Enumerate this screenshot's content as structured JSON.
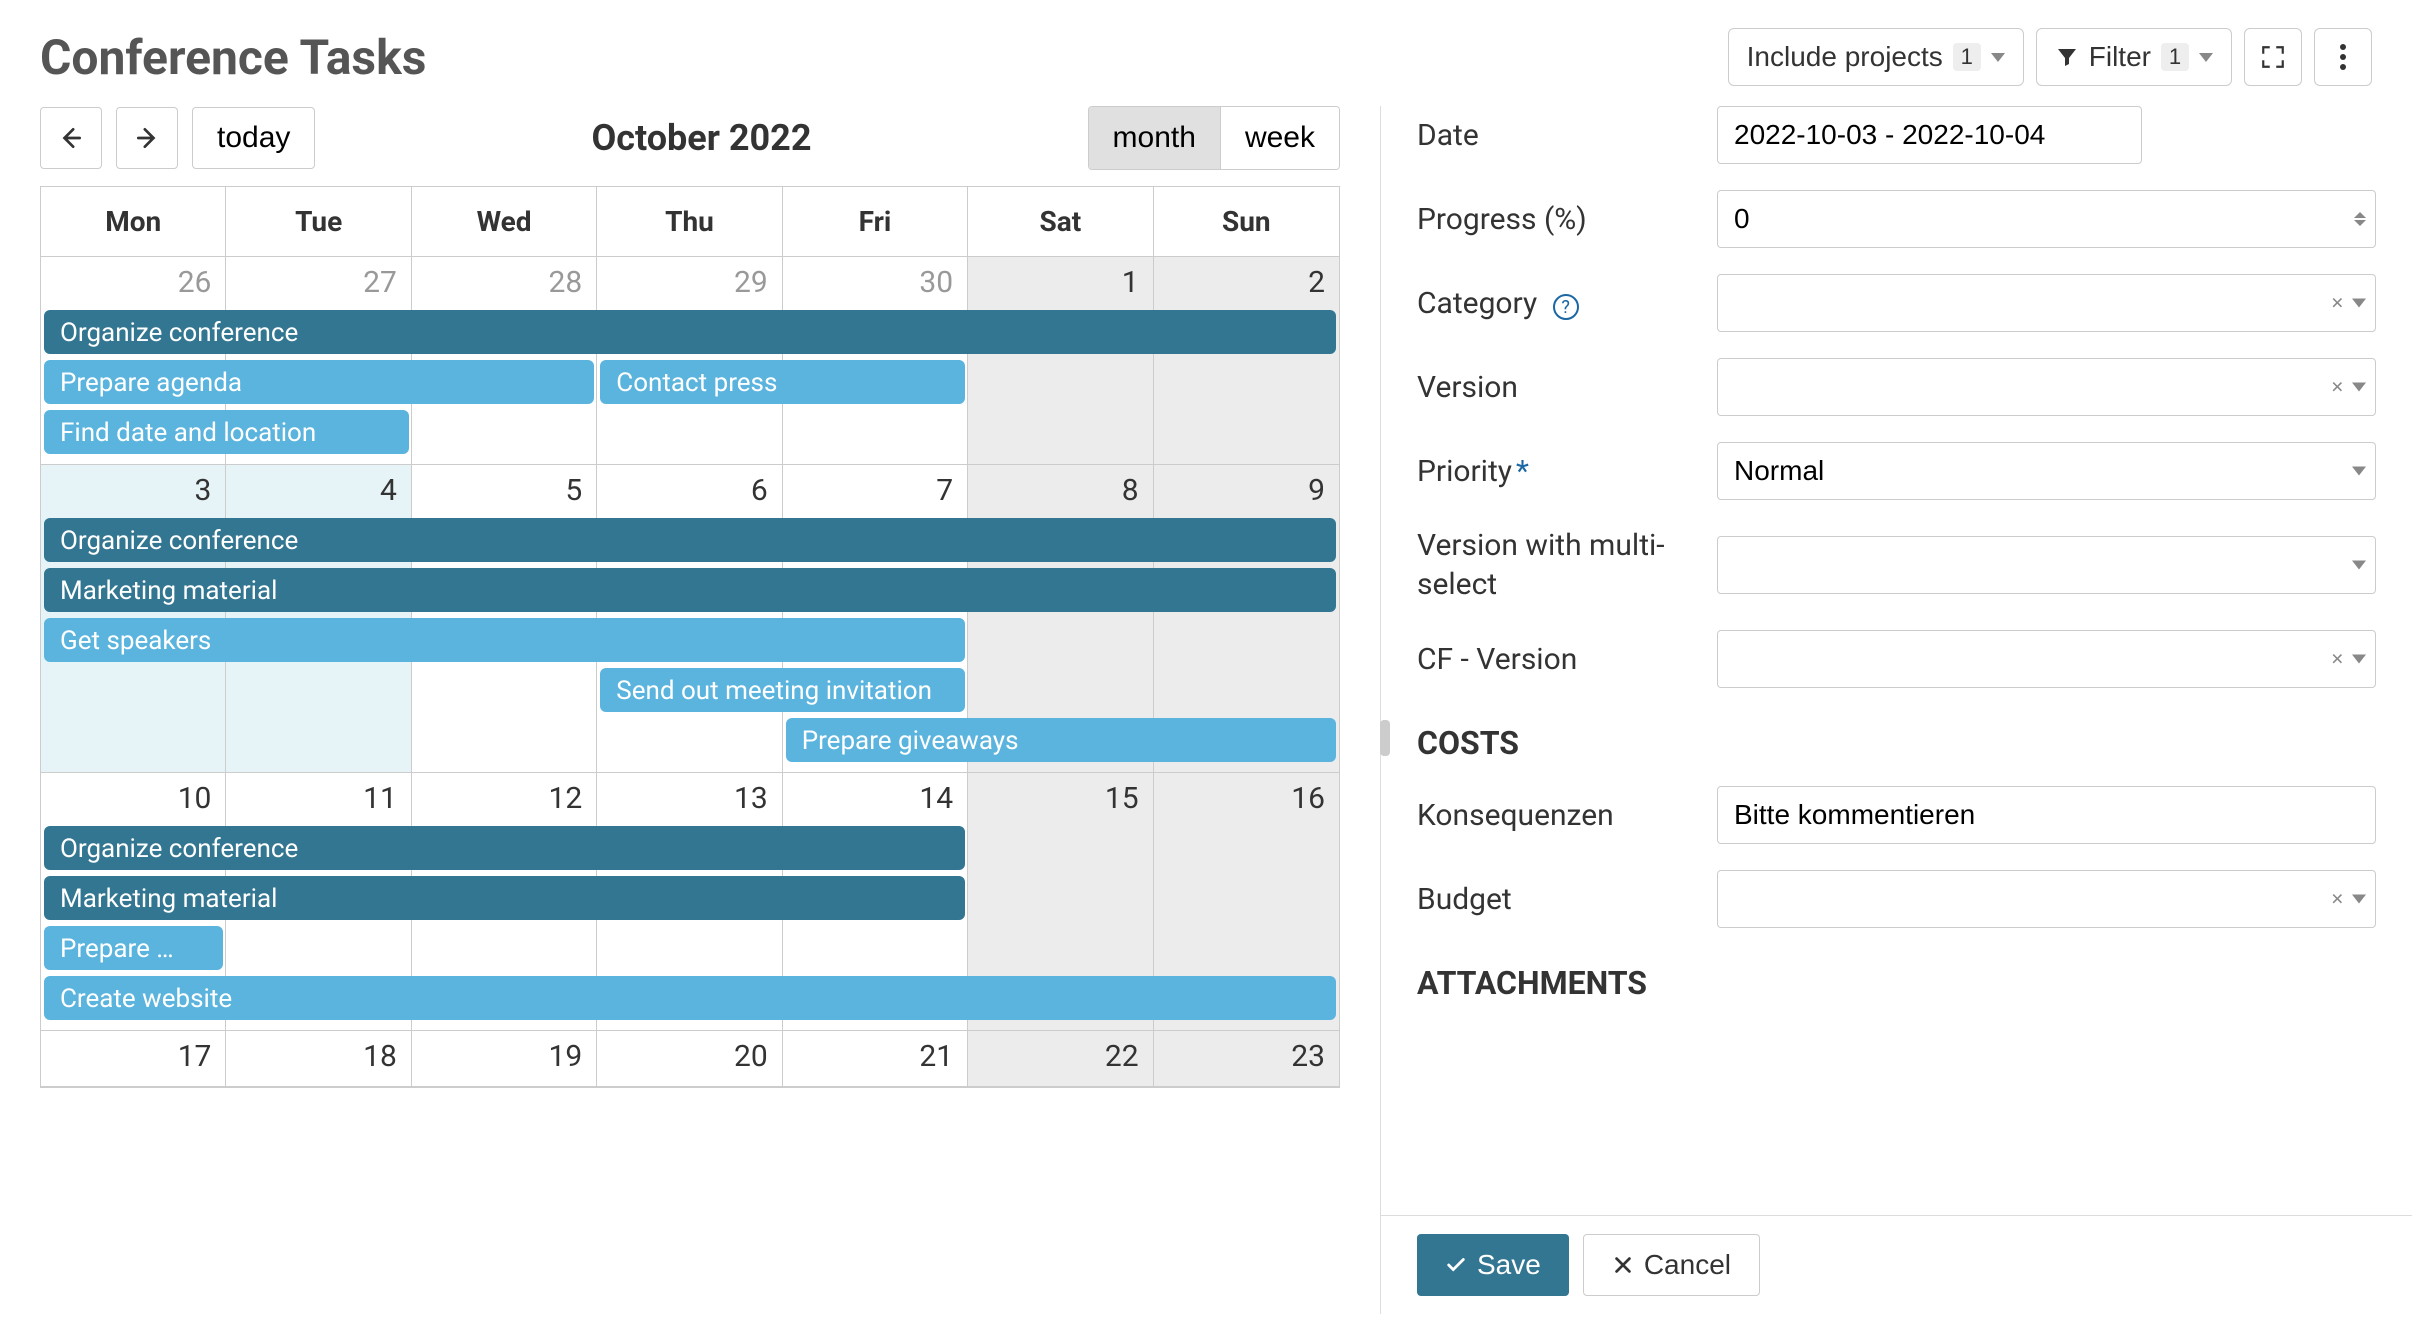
{
  "page": {
    "title": "Conference Tasks"
  },
  "toolbar": {
    "include_projects_label": "Include projects",
    "include_projects_count": "1",
    "filter_label": "Filter",
    "filter_count": "1"
  },
  "calendar": {
    "title": "October 2022",
    "today_label": "today",
    "view_month_label": "month",
    "view_week_label": "week",
    "active_view": "month",
    "day_headers": [
      "Mon",
      "Tue",
      "Wed",
      "Thu",
      "Fri",
      "Sat",
      "Sun"
    ],
    "weeks": [
      {
        "days": [
          {
            "num": "26",
            "other": true
          },
          {
            "num": "27",
            "other": true
          },
          {
            "num": "28",
            "other": true
          },
          {
            "num": "29",
            "other": true
          },
          {
            "num": "30",
            "other": true
          },
          {
            "num": "1",
            "weekend": true
          },
          {
            "num": "2",
            "weekend": true
          }
        ],
        "events": [
          {
            "label": "Organize conference",
            "start": 0,
            "span": 7,
            "row": 0,
            "cls": "ev-dark"
          },
          {
            "label": "Prepare agenda",
            "start": 0,
            "span": 3,
            "row": 1,
            "cls": "ev-light"
          },
          {
            "label": "Contact press",
            "start": 3,
            "span": 2,
            "row": 1,
            "cls": "ev-light"
          },
          {
            "label": "Find date and location",
            "start": 0,
            "span": 2,
            "row": 2,
            "cls": "ev-light"
          }
        ],
        "rows": 3
      },
      {
        "days": [
          {
            "num": "3",
            "selected": true
          },
          {
            "num": "4",
            "selected": true
          },
          {
            "num": "5"
          },
          {
            "num": "6"
          },
          {
            "num": "7"
          },
          {
            "num": "8",
            "weekend": true
          },
          {
            "num": "9",
            "weekend": true
          }
        ],
        "events": [
          {
            "label": "Organize conference",
            "start": 0,
            "span": 7,
            "row": 0,
            "cls": "ev-dark"
          },
          {
            "label": "Marketing material",
            "start": 0,
            "span": 7,
            "row": 1,
            "cls": "ev-dark"
          },
          {
            "label": "Get speakers",
            "start": 0,
            "span": 5,
            "row": 2,
            "cls": "ev-light"
          },
          {
            "label": "Send out meeting invitation",
            "start": 3,
            "span": 2,
            "row": 3,
            "cls": "ev-light"
          },
          {
            "label": "Prepare giveaways",
            "start": 4,
            "span": 3,
            "row": 4,
            "cls": "ev-light"
          }
        ],
        "rows": 5
      },
      {
        "days": [
          {
            "num": "10"
          },
          {
            "num": "11"
          },
          {
            "num": "12"
          },
          {
            "num": "13"
          },
          {
            "num": "14"
          },
          {
            "num": "15",
            "weekend": true
          },
          {
            "num": "16",
            "weekend": true
          }
        ],
        "events": [
          {
            "label": "Organize conference",
            "start": 0,
            "span": 5,
            "row": 0,
            "cls": "ev-dark"
          },
          {
            "label": "Marketing material",
            "start": 0,
            "span": 5,
            "row": 1,
            "cls": "ev-dark"
          },
          {
            "label": "Prepare …",
            "start": 0,
            "span": 1,
            "row": 2,
            "cls": "ev-light"
          },
          {
            "label": "Create website",
            "start": 0,
            "span": 7,
            "row": 3,
            "cls": "ev-light"
          }
        ],
        "rows": 4
      },
      {
        "days": [
          {
            "num": "17"
          },
          {
            "num": "18"
          },
          {
            "num": "19"
          },
          {
            "num": "20"
          },
          {
            "num": "21"
          },
          {
            "num": "22",
            "weekend": true
          },
          {
            "num": "23",
            "weekend": true
          }
        ],
        "events": [],
        "rows": 0
      }
    ],
    "event_row_height": 50,
    "event_height": 44,
    "day_cell_height": 50,
    "colors": {
      "dark": "#337691",
      "light": "#5bb4dd"
    }
  },
  "form": {
    "date_label": "Date",
    "date_value": "2022-10-03 - 2022-10-04",
    "progress_label": "Progress (%)",
    "progress_value": "0",
    "category_label": "Category",
    "category_value": "",
    "version_label": "Version",
    "version_value": "",
    "priority_label": "Priority",
    "priority_value": "Normal",
    "version_multi_label": "Version with multi-select",
    "version_multi_value": "",
    "cf_version_label": "CF - Version",
    "cf_version_value": "",
    "section_costs": "COSTS",
    "konsequenzen_label": "Konsequenzen",
    "konsequenzen_value": "Bitte kommentieren",
    "budget_label": "Budget",
    "budget_value": "",
    "section_attachments": "ATTACHMENTS",
    "save_label": "Save",
    "cancel_label": "Cancel"
  }
}
